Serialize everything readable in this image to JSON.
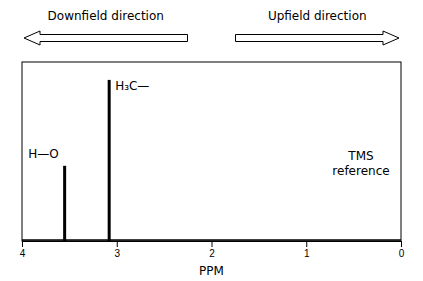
{
  "chart_data": {
    "type": "bar",
    "x": [
      3.55,
      3.08
    ],
    "values": [
      0.42,
      0.9
    ],
    "color": "#000000",
    "xlabel": "PPM",
    "xlim": [
      4,
      0
    ],
    "ylim": [
      0,
      1
    ],
    "xticks": [
      0,
      1,
      2,
      3,
      4
    ],
    "tick_labels": "x",
    "grid": false,
    "annotations": [
      {
        "text": "H—O"
      },
      {
        "text": "H₃C—"
      },
      {
        "text": "TMS\nreference"
      },
      {
        "text": "Downfield direction",
        "arrow": "left"
      },
      {
        "text": "Upfield direction",
        "arrow": "right"
      }
    ]
  }
}
